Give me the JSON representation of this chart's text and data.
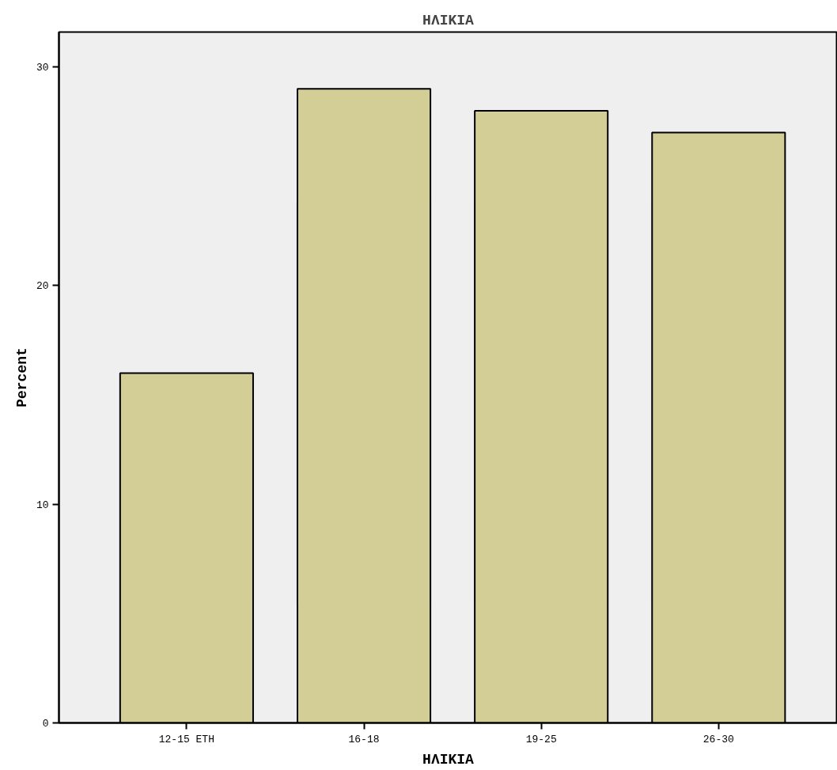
{
  "chart_data": {
    "type": "bar",
    "title": "ΗΛΙΚΙΑ",
    "xlabel": "ΗΛΙΚΙΑ",
    "ylabel": "Percent",
    "categories": [
      "12-15 ΕΤΗ",
      "16-18",
      "19-25",
      "26-30"
    ],
    "values": [
      16,
      29,
      28,
      27
    ],
    "color": "#d3ce96",
    "ylim": [
      0,
      31.6
    ],
    "yticks": [
      0,
      10,
      20,
      30
    ],
    "grid": false
  }
}
